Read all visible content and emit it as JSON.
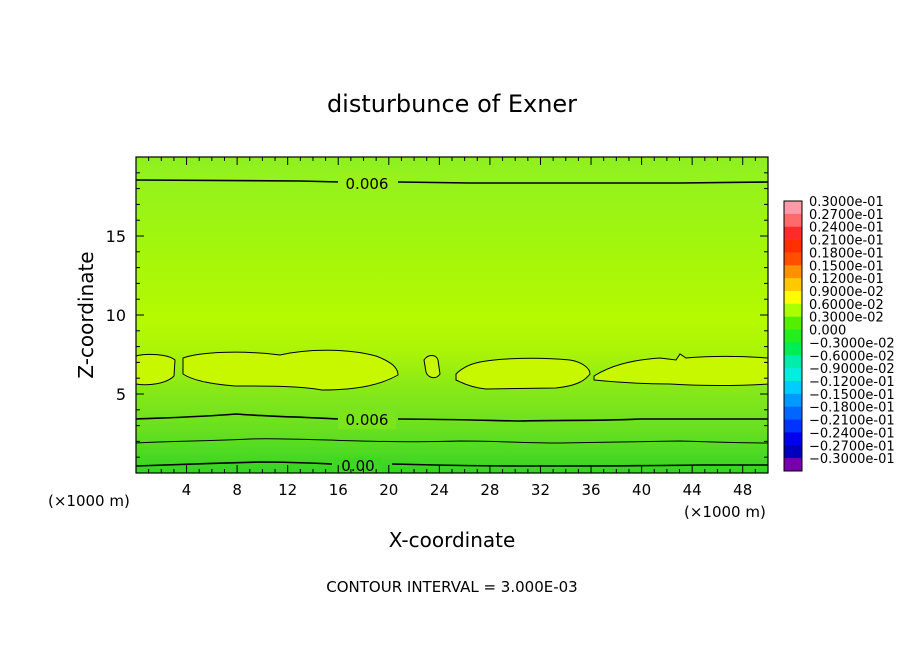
{
  "chart_data": {
    "type": "heatmap",
    "title": "disturbunce of Exner",
    "xlabel": "X-coordinate",
    "ylabel": "Z-coordinate",
    "x_unit_left": "(×1000 m)",
    "x_unit_right": "(×1000 m)",
    "xlim": [
      0,
      50
    ],
    "ylim": [
      0,
      20
    ],
    "x_ticks": [
      4,
      8,
      12,
      16,
      20,
      24,
      28,
      32,
      36,
      40,
      44,
      48
    ],
    "y_ticks": [
      5,
      10,
      15
    ],
    "x_tick_labels": [
      "4",
      "8",
      "12",
      "16",
      "20",
      "24",
      "28",
      "32",
      "36",
      "40",
      "44",
      "48"
    ],
    "y_tick_labels": [
      "5",
      "10",
      "15"
    ],
    "footer": "CONTOUR INTERVAL = 3.000E-03",
    "contour_labels": [
      {
        "text": "0.006",
        "x": 20.5,
        "y": 18.4
      },
      {
        "text": "0.006",
        "x": 20.5,
        "y": 3.4
      },
      {
        "text": "0.00",
        "x": 20.0,
        "y": 0.5
      }
    ],
    "colorbar": {
      "labels": [
        "0.3000e-01",
        "0.2700e-01",
        "0.2400e-01",
        "0.2100e-01",
        "0.1800e-01",
        "0.1500e-01",
        "0.1200e-01",
        "0.9000e-02",
        "0.6000e-02",
        "0.3000e-02",
        "0.000",
        "−0.3000e-02",
        "−0.6000e-02",
        "−0.9000e-02",
        "−0.1200e-01",
        "−0.1500e-01",
        "−0.1800e-01",
        "−0.2100e-01",
        "−0.2400e-01",
        "−0.2700e-01",
        "−0.3000e-01"
      ],
      "colors": [
        "#ff9aa8",
        "#ff6b6b",
        "#ff2a2a",
        "#ff3000",
        "#ff5000",
        "#ff9000",
        "#ffc800",
        "#ffff00",
        "#aaff00",
        "#55ee00",
        "#22ee22",
        "#00ee55",
        "#00eeaa",
        "#00eedd",
        "#00ccff",
        "#0099ff",
        "#0066ff",
        "#0033ff",
        "#0000ee",
        "#0000bb",
        "#7700aa"
      ]
    }
  }
}
